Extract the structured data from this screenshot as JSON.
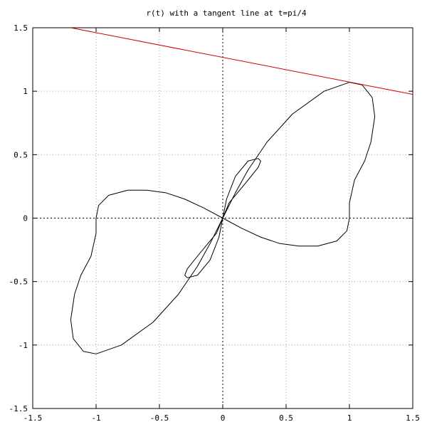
{
  "chart_data": {
    "type": "line",
    "title": "r(t) with a tangent line at t=pi/4",
    "xlabel": "",
    "ylabel": "",
    "xlim": [
      -1.5,
      1.5
    ],
    "ylim": [
      -1.5,
      1.5
    ],
    "x_ticks": [
      -1.5,
      -1,
      -0.5,
      0,
      0.5,
      1,
      1.5
    ],
    "x_tick_labels": [
      "-1.5",
      "-1",
      "-0.5",
      "0",
      "0.5",
      "1",
      "1.5"
    ],
    "y_ticks": [
      -1.5,
      -1,
      -0.5,
      0,
      0.5,
      1,
      1.5
    ],
    "y_tick_labels": [
      "-1.5",
      "-1",
      "-0.5",
      "0",
      "0.5",
      "1",
      "1.5"
    ],
    "grid": true,
    "zero_axes": true,
    "series": [
      {
        "kind": "parametric",
        "color": "#000000",
        "points": [
          [
            0,
            0
          ],
          [
            0.05,
            0.1
          ],
          [
            0.1,
            0.2
          ],
          [
            0.2,
            0.38
          ],
          [
            0.35,
            0.6
          ],
          [
            0.55,
            0.82
          ],
          [
            0.8,
            1.0
          ],
          [
            1.0,
            1.07
          ],
          [
            1.1,
            1.05
          ],
          [
            1.18,
            0.95
          ],
          [
            1.2,
            0.8
          ],
          [
            1.17,
            0.6
          ],
          [
            1.12,
            0.45
          ],
          [
            1.04,
            0.3
          ],
          [
            1.0,
            0.12
          ],
          [
            1.0,
            0.0
          ],
          [
            0.98,
            -0.1
          ],
          [
            0.9,
            -0.18
          ],
          [
            0.75,
            -0.22
          ],
          [
            0.6,
            -0.22
          ],
          [
            0.45,
            -0.2
          ],
          [
            0.3,
            -0.15
          ],
          [
            0.15,
            -0.08
          ],
          [
            0.0,
            0.0
          ],
          [
            -0.15,
            0.08
          ],
          [
            -0.3,
            0.15
          ],
          [
            -0.45,
            0.2
          ],
          [
            -0.6,
            0.22
          ],
          [
            -0.75,
            0.22
          ],
          [
            -0.9,
            0.18
          ],
          [
            -0.98,
            0.1
          ],
          [
            -1.0,
            0.0
          ],
          [
            -1.0,
            -0.12
          ],
          [
            -1.04,
            -0.3
          ],
          [
            -1.12,
            -0.45
          ],
          [
            -1.17,
            -0.6
          ],
          [
            -1.2,
            -0.8
          ],
          [
            -1.18,
            -0.95
          ],
          [
            -1.1,
            -1.05
          ],
          [
            -1.0,
            -1.07
          ],
          [
            -0.8,
            -1.0
          ],
          [
            -0.55,
            -0.82
          ],
          [
            -0.35,
            -0.6
          ],
          [
            -0.2,
            -0.38
          ],
          [
            -0.1,
            -0.2
          ],
          [
            -0.05,
            -0.1
          ],
          [
            0,
            0
          ],
          [
            0.05,
            0.12
          ],
          [
            0.1,
            0.18
          ],
          [
            0.2,
            0.3
          ],
          [
            0.28,
            0.4
          ],
          [
            0.3,
            0.45
          ],
          [
            0.28,
            0.47
          ],
          [
            0.2,
            0.45
          ],
          [
            0.1,
            0.33
          ],
          [
            0.03,
            0.15
          ],
          [
            0,
            0
          ],
          [
            -0.03,
            -0.15
          ],
          [
            -0.1,
            -0.33
          ],
          [
            -0.2,
            -0.45
          ],
          [
            -0.28,
            -0.47
          ],
          [
            -0.3,
            -0.45
          ],
          [
            -0.28,
            -0.4
          ],
          [
            -0.2,
            -0.3
          ],
          [
            -0.1,
            -0.18
          ],
          [
            -0.05,
            -0.12
          ],
          [
            0,
            0
          ]
        ]
      },
      {
        "kind": "line",
        "color": "#cc0000",
        "points": [
          [
            -1.2,
            1.5
          ],
          [
            1.5,
            0.975
          ]
        ]
      }
    ]
  }
}
